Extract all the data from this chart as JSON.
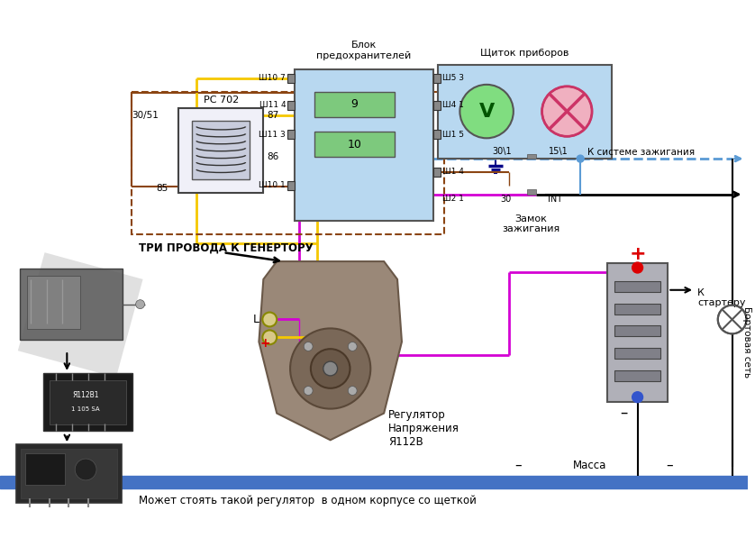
{
  "bg_color": "#ffffff",
  "text_blok": "Блок\nпредохранителей",
  "text_shitok": "Щиток приборов",
  "text_tri_provoda": "ТРИ ПРОВОДА К ГЕНЕРТОРУ",
  "text_regulyator": "Регулятор\nНапряжения\nЯ112В",
  "text_zamok": "Замок\nзажигания",
  "text_k_sisteme": "К системе зажигания",
  "text_k_starteru": "К\nстартеру",
  "text_bortovaya": "Бортовая сеть",
  "text_massa": "Масса",
  "text_mozhet": "Может стоять такой регулятор  в одном корпусе со щеткой",
  "text_rs702": "РС 702",
  "text_int": "INT",
  "text_30": "30",
  "text_301": "30\\1",
  "text_151": "15\\1",
  "text_85": "85",
  "text_86": "86",
  "text_87": "87",
  "text_3051": "30/51",
  "Sh107": "Ш10 7",
  "Sh114": "Ш11 4",
  "Sh113": "Ш11 3",
  "Sh101": "Ш10 1",
  "Sh53": "Ш5 3",
  "Sh41": "Ш4 1",
  "Sh15": "Ш1 5",
  "Sh14": "Ш1 4",
  "Sh21": "Ш2 1",
  "fuse9": "9",
  "fuse10": "10",
  "label_L": "L",
  "label_plus": "+",
  "label_minus": "–",
  "color_yellow": "#f5c800",
  "color_brown": "#8B4513",
  "color_magenta": "#d400d4",
  "color_blue_dash": "#5b9bd5",
  "color_black": "#000000",
  "color_fuse_block": "#b8d8f0",
  "color_fuse_green": "#7dc97d",
  "color_blue_bar": "#4472c4",
  "color_relay_border": "#8B4513",
  "color_red": "#dd0000",
  "color_dark_blue": "#000080"
}
